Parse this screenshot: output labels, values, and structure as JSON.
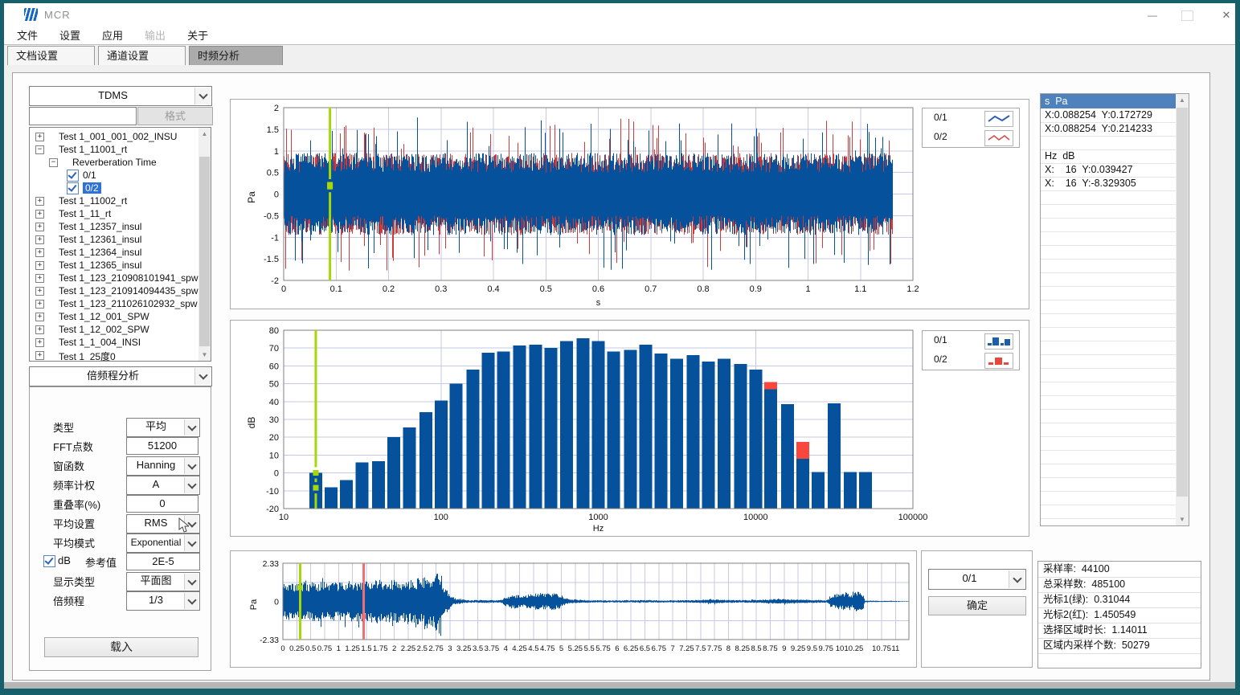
{
  "window": {
    "title": "MCR",
    "minimize": "—",
    "maximize": "□",
    "close": "✕"
  },
  "menu": {
    "items": [
      {
        "label": "文件",
        "enabled": true
      },
      {
        "label": "设置",
        "enabled": true
      },
      {
        "label": "应用",
        "enabled": true
      },
      {
        "label": "输出",
        "enabled": false
      },
      {
        "label": "关于",
        "enabled": true
      }
    ]
  },
  "tabs": [
    {
      "label": "文档设置",
      "active": false
    },
    {
      "label": "通道设置",
      "active": false
    },
    {
      "label": "时频分析",
      "active": true
    }
  ],
  "colors": {
    "trace_blue": "#05519b",
    "trace_red": "#cf3b3b",
    "bar_blue": "#05519b",
    "bar_red": "#f9473e",
    "cursor_green": "#a6d808",
    "cursor_red": "#ee7172",
    "grid": "#c5c8e6",
    "selection_blue": "#2e71d8",
    "header_blue": "#4f81bd",
    "frame_teal": "#175f6a"
  },
  "left": {
    "file_format": "TDMS",
    "filter_value": "",
    "format_button": "格式",
    "analysis_type": "倍频程分析",
    "load_button": "载入",
    "tree": [
      {
        "label": "Test 1_001_001_002_INSU",
        "level": 0,
        "expand": "plus"
      },
      {
        "label": "Test 1_11001_rt",
        "level": 0,
        "expand": "minus"
      },
      {
        "label": "Reverberation Time",
        "level": 1,
        "expand": "minus"
      },
      {
        "label": "0/1",
        "level": 2,
        "checkbox": true,
        "checked": true
      },
      {
        "label": "0/2",
        "level": 2,
        "checkbox": true,
        "checked": true,
        "selected": true
      },
      {
        "label": "Test 1_11002_rt",
        "level": 0,
        "expand": "plus"
      },
      {
        "label": "Test 1_11_rt",
        "level": 0,
        "expand": "plus"
      },
      {
        "label": "Test 1_12357_insul",
        "level": 0,
        "expand": "plus"
      },
      {
        "label": "Test 1_12361_insul",
        "level": 0,
        "expand": "plus"
      },
      {
        "label": "Test 1_12364_insul",
        "level": 0,
        "expand": "plus"
      },
      {
        "label": "Test 1_12365_insul",
        "level": 0,
        "expand": "plus"
      },
      {
        "label": "Test 1_123_210908101941_spw",
        "level": 0,
        "expand": "plus"
      },
      {
        "label": "Test 1_123_210914094435_spw",
        "level": 0,
        "expand": "plus"
      },
      {
        "label": "Test 1_123_211026102932_spw",
        "level": 0,
        "expand": "plus"
      },
      {
        "label": "Test 1_12_001_SPW",
        "level": 0,
        "expand": "plus"
      },
      {
        "label": "Test 1_12_002_SPW",
        "level": 0,
        "expand": "plus"
      },
      {
        "label": "Test 1_1_004_INSI",
        "level": 0,
        "expand": "plus"
      },
      {
        "label": "Test 1_25度0",
        "level": 0,
        "expand": "plus"
      }
    ],
    "settings": [
      {
        "label": "类型",
        "value": "平均",
        "control": "select"
      },
      {
        "label": "FFT点数",
        "value": "51200",
        "control": "input"
      },
      {
        "label": "窗函数",
        "value": "Hanning",
        "control": "select"
      },
      {
        "label": "频率计权",
        "value": "A",
        "control": "select"
      },
      {
        "label": "重叠率(%)",
        "value": "0",
        "control": "input"
      },
      {
        "label": "平均设置",
        "value": "RMS",
        "control": "select"
      },
      {
        "label": "平均模式",
        "value": "Exponential",
        "control": "select"
      },
      {
        "label": "dB",
        "label2": "参考值",
        "value": "2E-5",
        "control": "checkbox-input",
        "checked": true
      },
      {
        "label": "显示类型",
        "value": "平面图",
        "control": "select"
      },
      {
        "label": "倍频程",
        "value": "1/3",
        "control": "select"
      }
    ]
  },
  "right": {
    "readouts": {
      "header": "s  Pa",
      "rows": [
        "X:0.088254  Y:0.172729",
        "X:0.088254  Y:0.214233",
        "",
        "Hz  dB",
        "X:    16  Y:0.039427",
        "X:    16  Y:-8.329305"
      ]
    }
  },
  "bottom_right": {
    "channel": "0/1",
    "confirm": "确定",
    "info": [
      {
        "label": "采样率:",
        "value": "44100"
      },
      {
        "label": "总采样数:",
        "value": "485100"
      },
      {
        "label": "光标1(绿):",
        "value": "0.31044"
      },
      {
        "label": "光标2(红):",
        "value": "1.450549"
      },
      {
        "label": "选择区域时长:",
        "value": "1.14011"
      },
      {
        "label": "区域内采样个数:",
        "value": "50279"
      }
    ]
  },
  "chart_data": [
    {
      "id": "time-waveform",
      "type": "line",
      "xlabel": "s",
      "ylabel": "Pa",
      "xlim": [
        0,
        1.2
      ],
      "ylim": [
        -2,
        2
      ],
      "grid": true,
      "xticks": [
        "0",
        "0.1",
        "0.2",
        "0.3",
        "0.4",
        "0.5",
        "0.6",
        "0.7",
        "0.8",
        "0.9",
        "1",
        "1.1",
        "1.2"
      ],
      "yticks": [
        "2",
        "1.5",
        "1",
        "0.5",
        "0",
        "-0.5",
        "-1",
        "-1.5",
        "-2"
      ],
      "legend": [
        {
          "name": "0/1",
          "style": "line",
          "color": "#05519b"
        },
        {
          "name": "0/2",
          "style": "line",
          "color": "#cf3b3b"
        }
      ],
      "signal": {
        "kind": "broadband-noise",
        "t_end": 1.16,
        "typical_peak": 1.1,
        "max_peak": 1.7,
        "seed": 7
      },
      "cursor": {
        "color": "#a6d808",
        "x": 0.088254,
        "markers": [
          0.172729,
          0.214233
        ]
      }
    },
    {
      "id": "third-octave-spectrum",
      "type": "bar",
      "xlabel": "Hz",
      "ylabel": "dB",
      "xscale": "log",
      "xlim": [
        10,
        100000
      ],
      "ylim": [
        -20,
        80
      ],
      "grid": true,
      "xticks": [
        "10",
        "100",
        "1000",
        "10000",
        "100000"
      ],
      "yticks": [
        "80",
        "70",
        "60",
        "50",
        "40",
        "30",
        "20",
        "10",
        "0",
        "-10",
        "-20"
      ],
      "categories": [
        16,
        20,
        25,
        31.5,
        40,
        50,
        63,
        80,
        100,
        125,
        160,
        200,
        250,
        315,
        400,
        500,
        630,
        800,
        1000,
        1250,
        1600,
        2000,
        2500,
        3150,
        4000,
        5000,
        6300,
        8000,
        10000,
        12500,
        16000,
        20000,
        25000,
        31500,
        40000,
        50000
      ],
      "series": [
        {
          "name": "0/1",
          "color": "#05519b",
          "values": [
            0,
            -8,
            -4,
            6,
            6.5,
            20,
            25.5,
            34,
            40.5,
            50,
            58,
            67.5,
            68,
            71.5,
            72,
            70,
            74,
            75.5,
            74,
            68,
            69,
            72,
            67,
            64,
            66,
            62.5,
            64,
            61,
            58,
            47,
            38.5,
            8,
            0.5,
            39,
            0.5,
            0.5
          ]
        },
        {
          "name": "0/2",
          "color": "#f9473e",
          "values": [
            null,
            null,
            null,
            null,
            null,
            null,
            null,
            null,
            null,
            null,
            null,
            null,
            null,
            null,
            null,
            null,
            null,
            null,
            null,
            null,
            null,
            null,
            null,
            null,
            null,
            null,
            null,
            null,
            null,
            51,
            null,
            17.5,
            null,
            null,
            null,
            null
          ],
          "note": "other bands coincide with 0/1 and are hidden behind it"
        }
      ],
      "cursor": {
        "color": "#a6d808",
        "x": 16,
        "markers": [
          0.039427,
          -8.329305
        ]
      }
    },
    {
      "id": "overview-waveform",
      "type": "line",
      "xlabel": "",
      "ylabel": "Pa",
      "xlim": [
        0,
        11.24
      ],
      "ylim": [
        -2.33,
        2.33
      ],
      "grid": true,
      "xticks": [
        "0",
        "0.25",
        "0.5",
        "0.75",
        "1",
        "1.25",
        "1.5",
        "1.75",
        "2",
        "2.25",
        "2.5",
        "2.75",
        "3",
        "3.25",
        "3.5",
        "3.75",
        "4",
        "4.25",
        "4.5",
        "4.75",
        "5",
        "5.25",
        "5.5",
        "5.75",
        "6",
        "6.25",
        "6.5",
        "6.75",
        "7",
        "7.25",
        "7.5",
        "7.75",
        "8",
        "8.25",
        "8.5",
        "8.75",
        "9",
        "9.25",
        "9.5",
        "9.75",
        "10",
        "10.25",
        "10.75",
        "11"
      ],
      "yticks": [
        "2.33",
        "0",
        "-2.33"
      ],
      "envelope": [
        [
          0,
          1.15
        ],
        [
          0.5,
          1.2
        ],
        [
          1,
          1.25
        ],
        [
          1.5,
          1.3
        ],
        [
          2,
          1.35
        ],
        [
          2.5,
          1.45
        ],
        [
          2.7,
          1.6
        ],
        [
          2.78,
          2.33
        ],
        [
          2.9,
          0.9
        ],
        [
          3,
          0.4
        ],
        [
          3.1,
          0.18
        ],
        [
          3.3,
          0.09
        ],
        [
          3.9,
          0.08
        ],
        [
          4,
          0.3
        ],
        [
          4.15,
          0.42
        ],
        [
          4.3,
          0.35
        ],
        [
          4.5,
          0.5
        ],
        [
          4.7,
          0.48
        ],
        [
          4.85,
          0.55
        ],
        [
          5,
          0.3
        ],
        [
          5.15,
          0.12
        ],
        [
          5.5,
          0.08
        ],
        [
          6,
          0.07
        ],
        [
          6.5,
          0.08
        ],
        [
          7,
          0.06
        ],
        [
          7.5,
          0.1
        ],
        [
          7.7,
          0.16
        ],
        [
          7.9,
          0.1
        ],
        [
          8.3,
          0.08
        ],
        [
          8.8,
          0.14
        ],
        [
          9,
          0.16
        ],
        [
          9.2,
          0.12
        ],
        [
          9.5,
          0.1
        ],
        [
          9.75,
          0.08
        ],
        [
          9.9,
          0.45
        ],
        [
          10,
          0.5
        ],
        [
          10.1,
          0.55
        ],
        [
          10.2,
          0.4
        ],
        [
          10.3,
          0.65
        ],
        [
          10.4,
          0.5
        ],
        [
          10.45,
          0.05
        ],
        [
          11.24,
          0.02
        ]
      ],
      "cursors": [
        {
          "color": "#a6d808",
          "x": 0.31044,
          "marker": 0.84
        },
        {
          "color": "#ee7172",
          "x": 1.450549,
          "marker": -0.93
        }
      ]
    }
  ]
}
